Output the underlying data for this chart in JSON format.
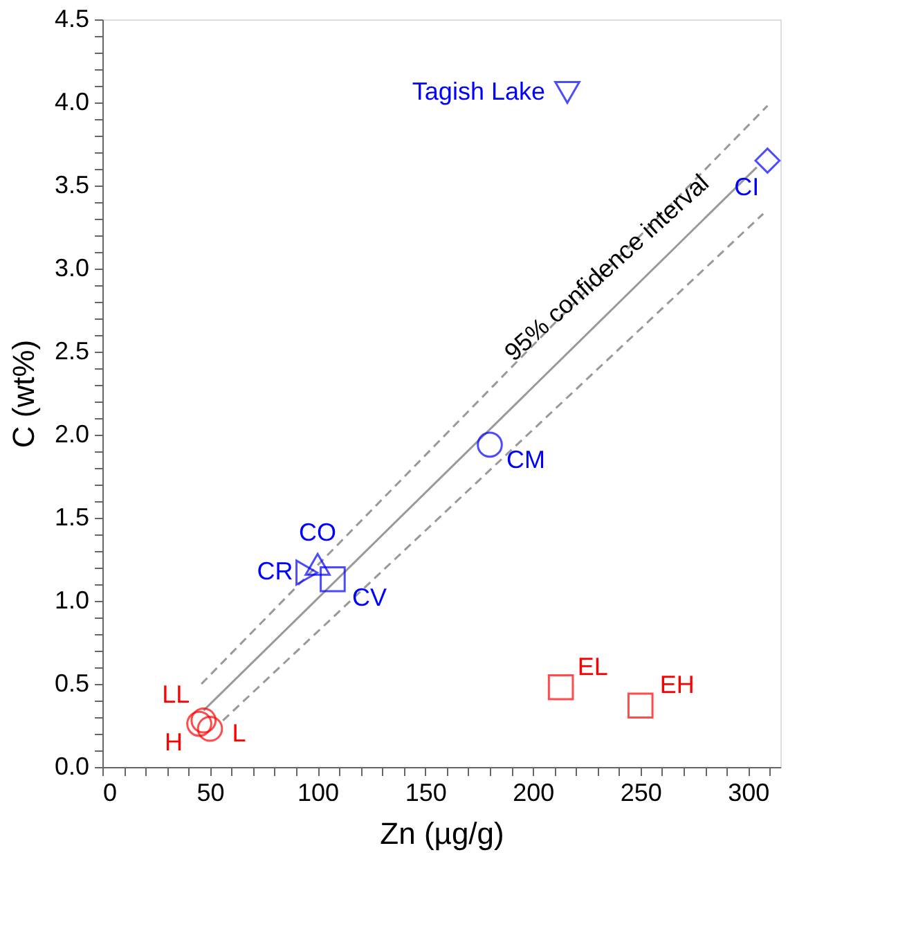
{
  "chart_data": {
    "type": "scatter",
    "xlabel": "Zn (µg/g)",
    "ylabel": "C (wt%)",
    "xlim": [
      0,
      315
    ],
    "ylim": [
      0,
      4.5
    ],
    "xticks": [
      0,
      {
        "value": 10,
        "label": null
      },
      {
        "value": 20,
        "label": null
      },
      {
        "value": 30,
        "label": null
      },
      {
        "value": 40,
        "label": null
      },
      50,
      {
        "value": 60,
        "label": null
      },
      {
        "value": 70,
        "label": null
      },
      {
        "value": 80,
        "label": null
      },
      {
        "value": 90,
        "label": null
      },
      100,
      {
        "value": 110,
        "label": null
      },
      {
        "value": 120,
        "label": null
      },
      {
        "value": 130,
        "label": null
      },
      {
        "value": 140,
        "label": null
      },
      150,
      {
        "value": 160,
        "label": null
      },
      {
        "value": 170,
        "label": null
      },
      {
        "value": 180,
        "label": null
      },
      {
        "value": 190,
        "label": null
      },
      200,
      {
        "value": 210,
        "label": null
      },
      {
        "value": 220,
        "label": null
      },
      {
        "value": 230,
        "label": null
      },
      {
        "value": 240,
        "label": null
      },
      250,
      {
        "value": 260,
        "label": null
      },
      {
        "value": 270,
        "label": null
      },
      {
        "value": 280,
        "label": null
      },
      {
        "value": 290,
        "label": null
      },
      300,
      {
        "value": 310,
        "label": null
      }
    ],
    "yticks": [
      {
        "value": 0,
        "label": "0.0"
      },
      {
        "value": 0.1,
        "label": null
      },
      {
        "value": 0.2,
        "label": null
      },
      {
        "value": 0.3,
        "label": null
      },
      {
        "value": 0.4,
        "label": null
      },
      0.5,
      {
        "value": 0.6,
        "label": null
      },
      {
        "value": 0.7,
        "label": null
      },
      {
        "value": 0.8,
        "label": null
      },
      {
        "value": 0.9,
        "label": null
      },
      {
        "value": 1,
        "label": "1.0"
      },
      {
        "value": 1.1,
        "label": null
      },
      {
        "value": 1.2,
        "label": null
      },
      {
        "value": 1.3,
        "label": null
      },
      {
        "value": 1.4,
        "label": null
      },
      1.5,
      {
        "value": 1.6,
        "label": null
      },
      {
        "value": 1.7,
        "label": null
      },
      {
        "value": 1.8,
        "label": null
      },
      {
        "value": 1.9,
        "label": null
      },
      {
        "value": 2,
        "label": "2.0"
      },
      {
        "value": 2.1,
        "label": null
      },
      {
        "value": 2.2,
        "label": null
      },
      {
        "value": 2.3,
        "label": null
      },
      {
        "value": 2.4,
        "label": null
      },
      2.5,
      {
        "value": 2.6,
        "label": null
      },
      {
        "value": 2.7,
        "label": null
      },
      {
        "value": 2.8,
        "label": null
      },
      {
        "value": 2.9,
        "label": null
      },
      {
        "value": 3,
        "label": "3.0"
      },
      {
        "value": 3.1,
        "label": null
      },
      {
        "value": 3.2,
        "label": null
      },
      {
        "value": 3.3,
        "label": null
      },
      {
        "value": 3.4,
        "label": null
      },
      3.5,
      {
        "value": 3.6,
        "label": null
      },
      {
        "value": 3.7,
        "label": null
      },
      {
        "value": 3.8,
        "label": null
      },
      {
        "value": 3.9,
        "label": null
      },
      {
        "value": 4,
        "label": "4.0"
      },
      {
        "value": 4.1,
        "label": null
      },
      {
        "value": 4.2,
        "label": null
      },
      {
        "value": 4.3,
        "label": null
      },
      {
        "value": 4.4,
        "label": null
      },
      4.5
    ],
    "grid": false,
    "series": [
      {
        "type": "line",
        "color": "#999999",
        "line_style": "solid",
        "marker": "none",
        "x": [
          47,
          304
        ],
        "values": [
          0.34,
          3.61
        ]
      },
      {
        "type": "line",
        "color": "#999999",
        "line_style": "dashed",
        "marker": "none",
        "x": [
          46,
          309
        ],
        "values": [
          0.5,
          3.98
        ]
      },
      {
        "type": "line",
        "color": "#999999",
        "line_style": "dashed",
        "marker": "none",
        "x": [
          56,
          307
        ],
        "values": [
          0.28,
          3.33
        ]
      },
      {
        "name": "LL",
        "color": "#ff0000",
        "marker": "circle",
        "x": [
          47
        ],
        "values": [
          0.28
        ]
      },
      {
        "name": "H",
        "color": "#ff0000",
        "marker": "circle",
        "x": [
          45
        ],
        "values": [
          0.26
        ]
      },
      {
        "name": "L",
        "color": "#ff0000",
        "marker": "circle",
        "x": [
          50
        ],
        "values": [
          0.23
        ]
      },
      {
        "name": "EL",
        "color": "#ff0000",
        "marker": "square",
        "x": [
          213
        ],
        "values": [
          0.48
        ]
      },
      {
        "name": "EH",
        "color": "#ff0000",
        "marker": "square",
        "x": [
          250
        ],
        "values": [
          0.37
        ]
      },
      {
        "name": "CR",
        "color": "#0000ff",
        "marker": "triangle-right",
        "x": [
          95
        ],
        "values": [
          1.17
        ]
      },
      {
        "name": "CO",
        "color": "#0000ff",
        "marker": "triangle",
        "x": [
          100
        ],
        "values": [
          1.22
        ]
      },
      {
        "name": "CV",
        "color": "#0000ff",
        "marker": "square",
        "x": [
          107
        ],
        "values": [
          1.13
        ]
      },
      {
        "name": "CM",
        "color": "#0000ff",
        "marker": "circle",
        "x": [
          180
        ],
        "values": [
          1.94
        ]
      },
      {
        "name": "CI",
        "color": "#0000ff",
        "marker": "diamond",
        "x": [
          309
        ],
        "values": [
          3.65
        ]
      },
      {
        "name": "Tagish Lake",
        "color": "#0000ff",
        "marker": "triangle-down",
        "x": [
          216
        ],
        "values": [
          4.06
        ]
      }
    ],
    "annotations": [
      "95% confidence interval"
    ]
  }
}
